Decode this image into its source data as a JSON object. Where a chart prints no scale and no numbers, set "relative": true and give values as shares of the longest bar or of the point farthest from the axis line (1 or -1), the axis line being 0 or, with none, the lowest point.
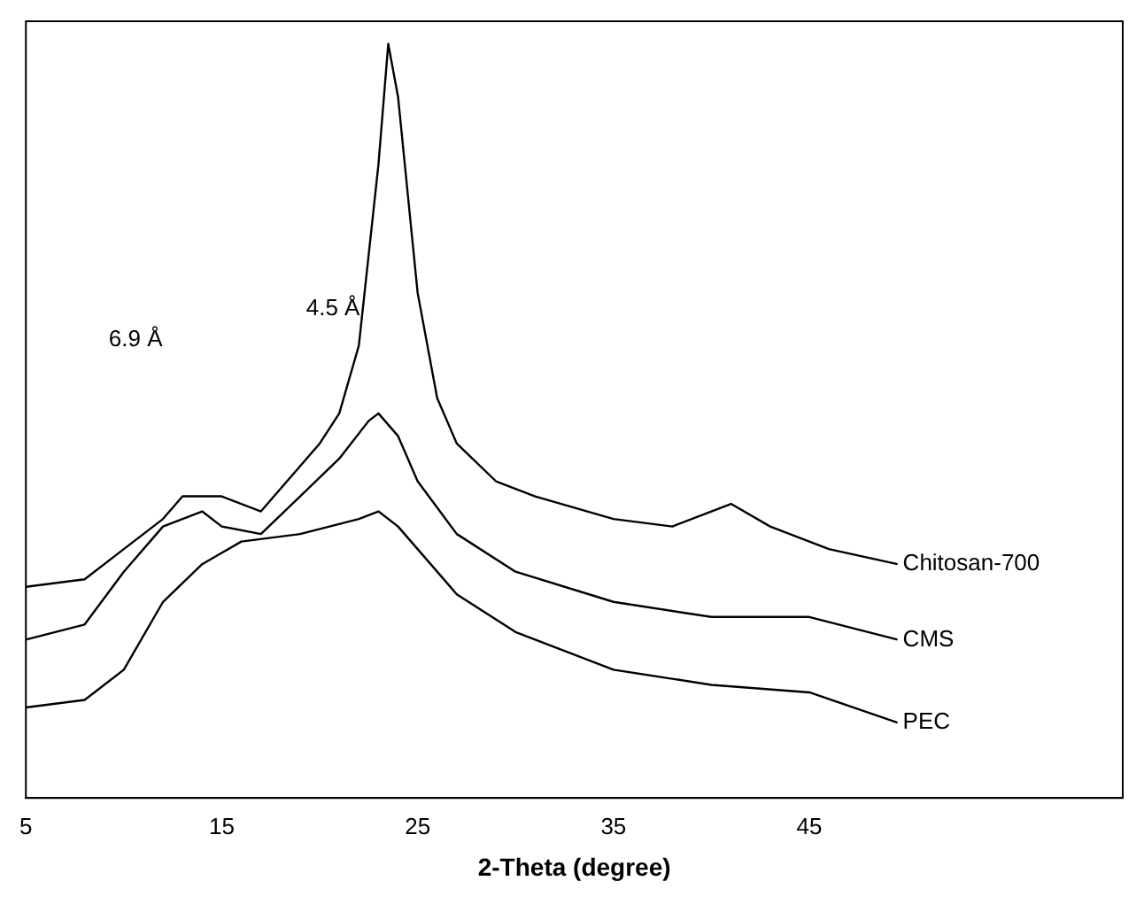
{
  "chart_data": {
    "type": "line",
    "relative": true,
    "xlabel": "2-Theta (degree)",
    "xlim": [
      5,
      61
    ],
    "xticks": [
      5,
      15,
      25,
      35,
      45
    ],
    "grid": false,
    "legend": false,
    "marker": "none",
    "line_style": "solid",
    "series": [
      {
        "name": "Chitosan-700",
        "color": "#000000",
        "x": [
          5,
          8,
          10,
          12,
          13,
          15,
          17,
          19,
          20,
          21,
          22,
          23,
          23.5,
          24,
          25,
          26,
          27,
          29,
          31,
          35,
          38,
          40,
          41,
          43,
          46,
          49.5
        ],
        "values": [
          0.28,
          0.29,
          0.33,
          0.37,
          0.4,
          0.4,
          0.38,
          0.44,
          0.47,
          0.51,
          0.6,
          0.84,
          1,
          0.93,
          0.67,
          0.53,
          0.47,
          0.42,
          0.4,
          0.37,
          0.36,
          0.38,
          0.39,
          0.36,
          0.33,
          0.31
        ]
      },
      {
        "name": "CMS",
        "color": "#000000",
        "x": [
          5,
          8,
          10,
          12,
          14,
          15,
          17,
          19,
          21,
          22.5,
          23,
          24,
          25,
          27,
          30,
          35,
          40,
          45,
          49.5
        ],
        "values": [
          0.21,
          0.23,
          0.3,
          0.36,
          0.38,
          0.36,
          0.35,
          0.4,
          0.45,
          0.5,
          0.51,
          0.48,
          0.42,
          0.35,
          0.3,
          0.26,
          0.24,
          0.24,
          0.21
        ]
      },
      {
        "name": "PEC",
        "color": "#000000",
        "x": [
          5,
          8,
          10,
          12,
          14,
          16,
          19,
          22,
          23,
          24,
          25,
          27,
          30,
          35,
          40,
          45,
          49.5
        ],
        "values": [
          0.12,
          0.13,
          0.17,
          0.26,
          0.31,
          0.34,
          0.35,
          0.37,
          0.38,
          0.36,
          0.33,
          0.27,
          0.22,
          0.17,
          0.15,
          0.14,
          0.1
        ]
      }
    ],
    "annotations": [
      "6.9 Å",
      "4.5 Å"
    ]
  }
}
